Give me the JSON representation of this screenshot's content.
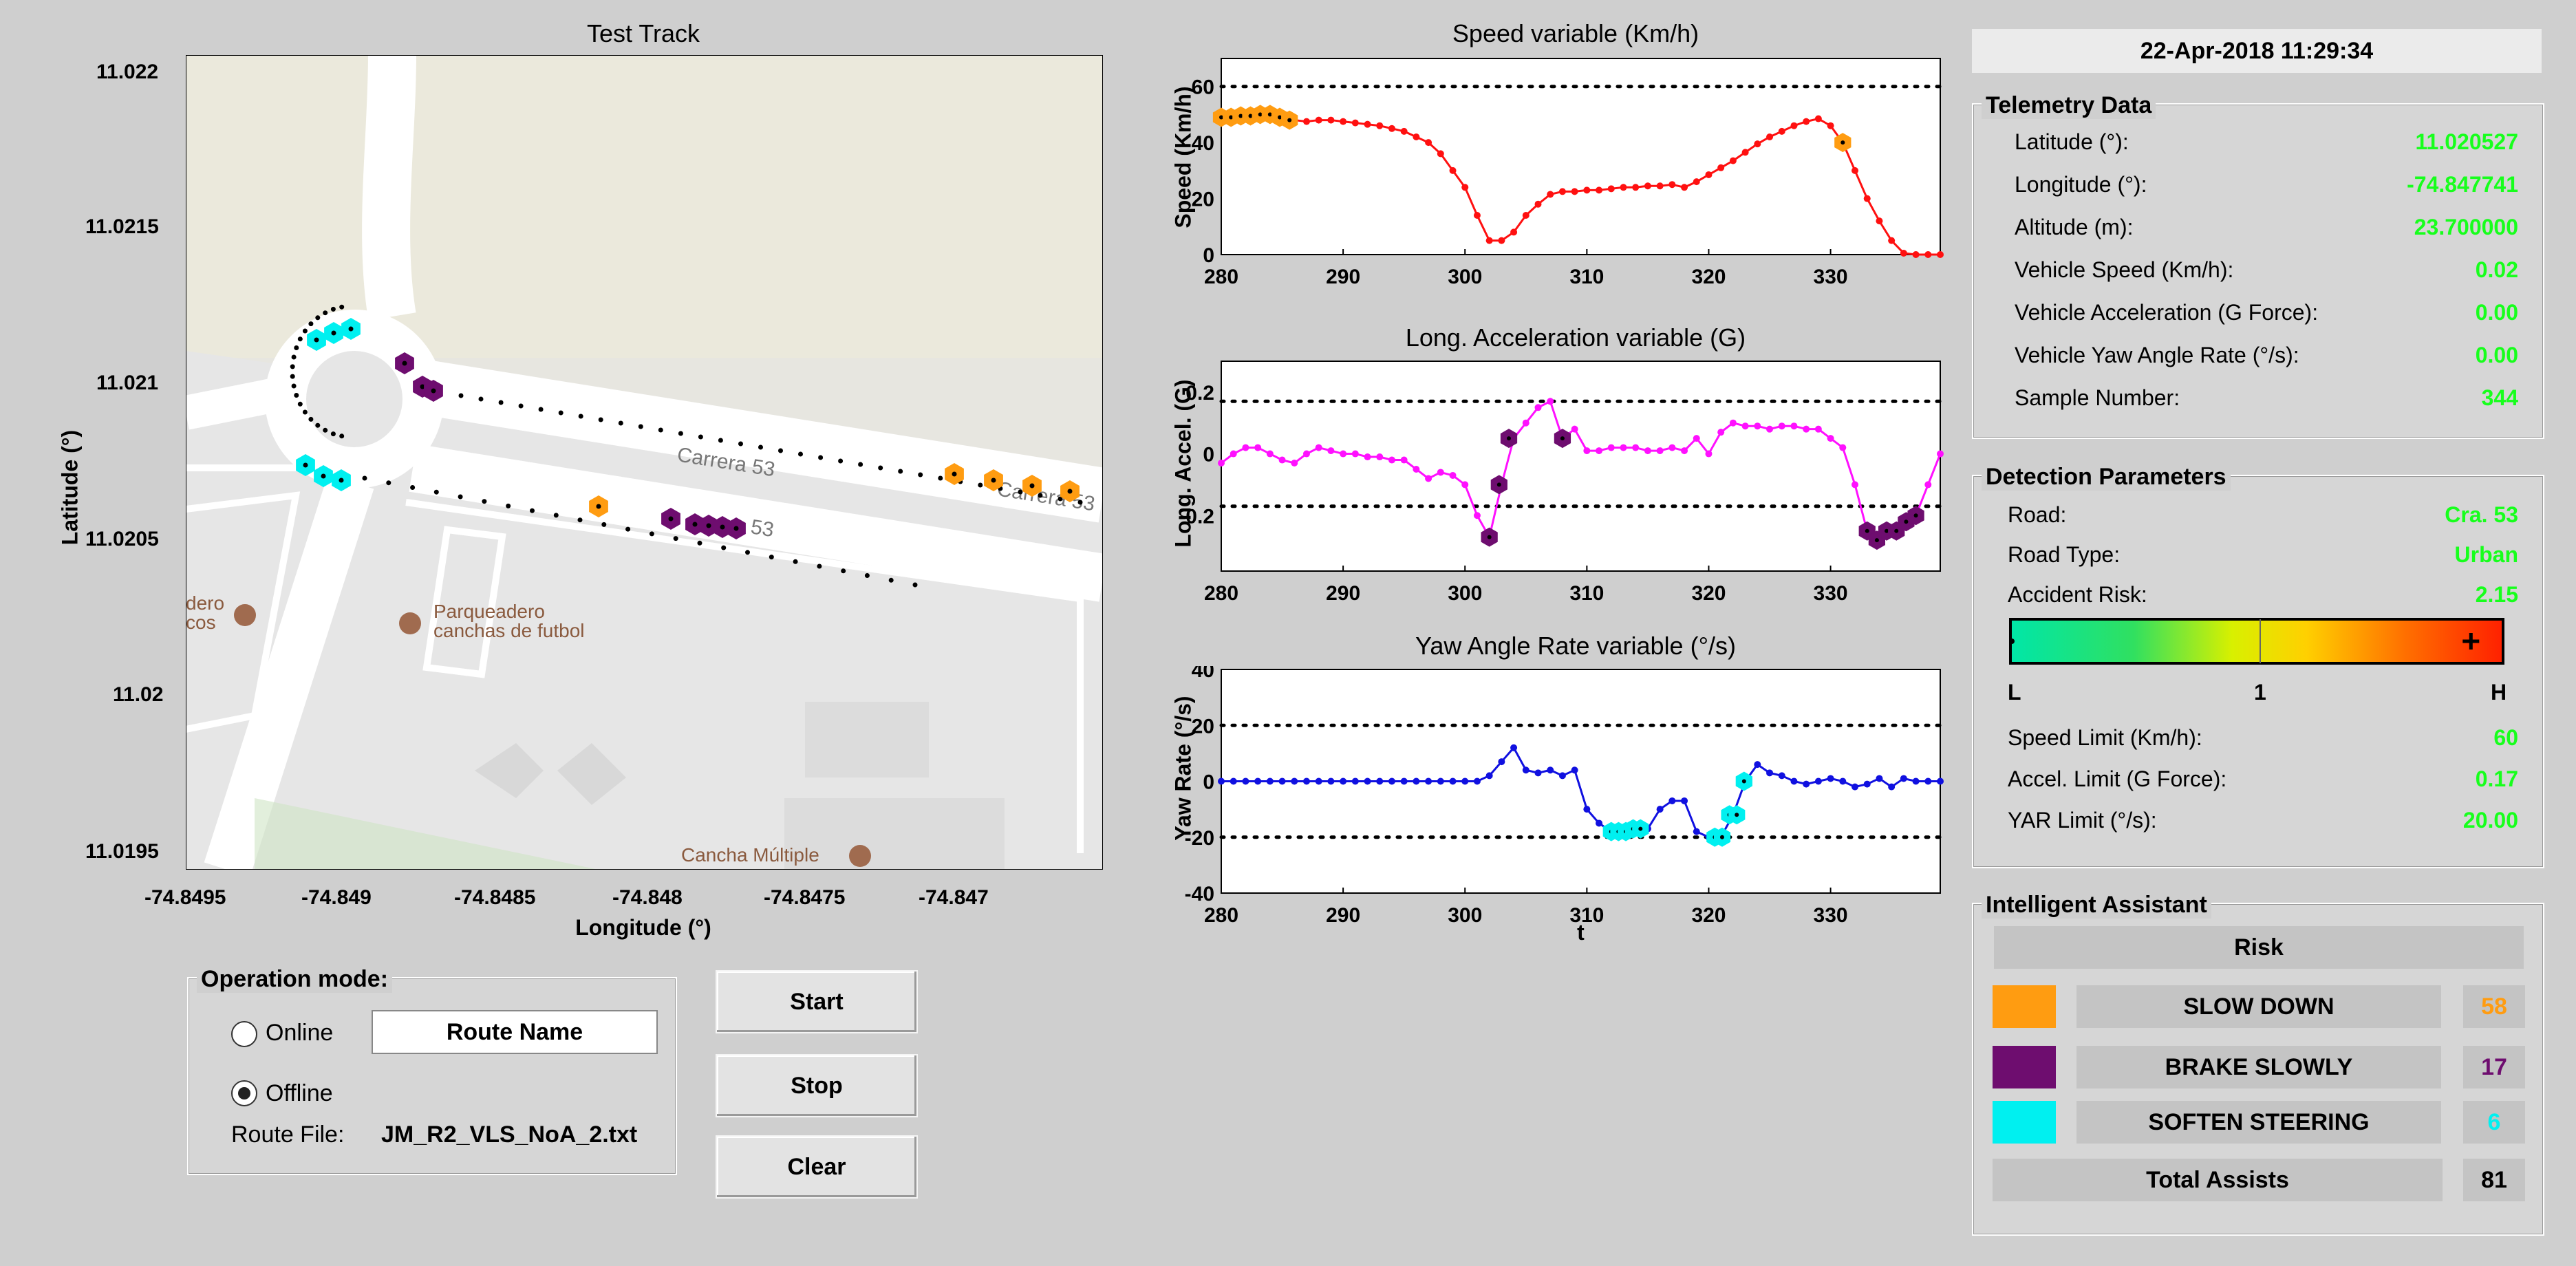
{
  "map": {
    "title": "Test Track",
    "xlabel": "Longitude (°)",
    "ylabel": "Latitude (°)",
    "y_ticks": [
      "11.022",
      "11.0215",
      "11.021",
      "11.0205",
      "11.02",
      "11.0195"
    ],
    "x_ticks": [
      "-74.8495",
      "-74.849",
      "-74.8485",
      "-74.848",
      "-74.8475",
      "-74.847"
    ],
    "street_labels": [
      "Carrera 53",
      "Carrera 53",
      "53"
    ],
    "place_labels": [
      "Parqueadero",
      "canchas de futbol",
      "dero",
      "cos",
      "Cancha Múltiple"
    ]
  },
  "colors": {
    "slow_down": "#ff9c11",
    "brake": "#6e0d6f",
    "steer": "#00f0f0",
    "speed": "#ff1010",
    "accel": "#ff10ff",
    "yaw": "#1010e0",
    "green": "#17ff1c"
  },
  "speed_chart": {
    "type": "line",
    "title": "Speed variable (Km/h)",
    "ylabel": "Speed (Km/h)",
    "xlabel": "",
    "xlim": [
      280,
      339
    ],
    "ylim": [
      0,
      70
    ],
    "x_ticks": [
      "280",
      "290",
      "300",
      "310",
      "320",
      "330"
    ],
    "y_ticks": [
      "60",
      "40",
      "20",
      "0"
    ],
    "limit_lines": [
      60
    ],
    "x": [
      280,
      281,
      282,
      283,
      284,
      285,
      286,
      287,
      288,
      289,
      290,
      291,
      292,
      293,
      294,
      295,
      296,
      297,
      298,
      299,
      300,
      301,
      302,
      303,
      304,
      305,
      306,
      307,
      308,
      309,
      310,
      311,
      312,
      313,
      314,
      315,
      316,
      317,
      318,
      319,
      320,
      321,
      322,
      323,
      324,
      325,
      326,
      327,
      328,
      329,
      330,
      331,
      332,
      333,
      334,
      335,
      336,
      337,
      338,
      339
    ],
    "values": [
      49,
      49,
      49.5,
      50,
      50,
      49,
      48,
      47.5,
      48,
      48,
      47.5,
      47,
      46.5,
      46,
      45,
      44,
      42,
      40,
      36,
      30,
      24,
      14,
      5,
      5,
      8,
      14,
      18,
      21.5,
      22.5,
      22.5,
      23,
      23,
      23.5,
      24,
      24,
      24.5,
      24.5,
      25,
      24,
      26,
      28.5,
      31,
      33.5,
      36.5,
      39.5,
      42,
      44,
      46,
      47.5,
      48.5,
      46,
      40,
      30,
      20,
      12,
      5,
      0.5,
      0,
      0,
      0
    ],
    "markers": [
      {
        "series": "slow_down",
        "x": [
          280,
          280.8,
          281.6,
          282.4,
          283.2,
          284,
          284.8,
          285.6,
          331
        ]
      }
    ]
  },
  "accel_chart": {
    "type": "line",
    "title": "Long. Acceleration variable (G)",
    "ylabel": "Long. Accel. (G)",
    "xlabel": "",
    "xlim": [
      280,
      339
    ],
    "ylim": [
      -0.38,
      0.3
    ],
    "x_ticks": [
      "280",
      "290",
      "300",
      "310",
      "320",
      "330"
    ],
    "y_ticks": [
      "0.2",
      "0",
      "-0.2"
    ],
    "limit_lines": [
      0.17,
      -0.17
    ],
    "x": [
      280,
      281,
      282,
      283,
      284,
      285,
      286,
      287,
      288,
      289,
      290,
      291,
      292,
      293,
      294,
      295,
      296,
      297,
      298,
      299,
      300,
      301,
      302,
      303,
      304,
      305,
      306,
      307,
      308,
      309,
      310,
      311,
      312,
      313,
      314,
      315,
      316,
      317,
      318,
      319,
      320,
      321,
      322,
      323,
      324,
      325,
      326,
      327,
      328,
      329,
      330,
      331,
      332,
      333,
      334,
      335,
      336,
      337,
      338,
      339
    ],
    "values": [
      -0.03,
      0,
      0.02,
      0.02,
      0,
      -0.02,
      -0.03,
      0,
      0.02,
      0.01,
      0,
      0,
      -0.01,
      -0.01,
      -0.02,
      -0.02,
      -0.05,
      -0.08,
      -0.06,
      -0.07,
      -0.1,
      -0.2,
      -0.27,
      -0.1,
      0.05,
      0.1,
      0.15,
      0.17,
      0.05,
      0.08,
      0.01,
      0.01,
      0.02,
      0.02,
      0.02,
      0.01,
      0.01,
      0.02,
      0.01,
      0.05,
      0,
      0.07,
      0.1,
      0.09,
      0.09,
      0.08,
      0.09,
      0.09,
      0.08,
      0.08,
      0.05,
      0.02,
      -0.1,
      -0.25,
      -0.28,
      -0.25,
      -0.22,
      -0.2,
      -0.1,
      0
    ],
    "markers": [
      {
        "series": "brake",
        "x": [
          302,
          302.8,
          303.6,
          308,
          333,
          333.8,
          334.6,
          335.4,
          336.2,
          337
        ]
      }
    ]
  },
  "yaw_chart": {
    "type": "line",
    "title": "Yaw Angle Rate variable (°/s)",
    "ylabel": "Yaw Rate (°/s)",
    "xlabel": "t",
    "xlim": [
      280,
      339
    ],
    "ylim": [
      -40,
      40
    ],
    "x_ticks": [
      "280",
      "290",
      "300",
      "310",
      "320",
      "330"
    ],
    "y_ticks": [
      "40",
      "20",
      "0",
      "-20",
      "-40"
    ],
    "limit_lines": [
      20,
      -20
    ],
    "x": [
      280,
      281,
      282,
      283,
      284,
      285,
      286,
      287,
      288,
      289,
      290,
      291,
      292,
      293,
      294,
      295,
      296,
      297,
      298,
      299,
      300,
      301,
      302,
      303,
      304,
      305,
      306,
      307,
      308,
      309,
      310,
      311,
      312,
      313,
      314,
      315,
      316,
      317,
      318,
      319,
      320,
      321,
      322,
      323,
      324,
      325,
      326,
      327,
      328,
      329,
      330,
      331,
      332,
      333,
      334,
      335,
      336,
      337,
      338,
      339
    ],
    "values": [
      0,
      0,
      0,
      0,
      0,
      0,
      0,
      0,
      0,
      0,
      0,
      0,
      0,
      0,
      0,
      0,
      0,
      0,
      0,
      0,
      0,
      0,
      2,
      7,
      12,
      4,
      3,
      4,
      2,
      4,
      -10,
      -15,
      -18,
      -18,
      -17,
      -17,
      -10,
      -7,
      -7,
      -18,
      -20,
      -20,
      -12,
      0,
      6,
      3,
      2,
      0,
      -1,
      0,
      1,
      0,
      -2,
      -1,
      1,
      -2,
      1,
      0,
      0,
      0
    ],
    "markers": [
      {
        "series": "steer",
        "x": [
          312,
          312.6,
          313.2,
          313.8,
          314.4,
          320.5,
          321.1,
          321.7,
          322.3,
          322.9
        ]
      }
    ]
  },
  "datetime": "22-Apr-2018 11:29:34",
  "telemetry": {
    "title": "Telemetry Data",
    "rows": [
      {
        "label": "Latitude (°):",
        "value": "11.020527"
      },
      {
        "label": "Longitude (°):",
        "value": "-74.847741"
      },
      {
        "label": "Altitude (m):",
        "value": "23.700000"
      },
      {
        "label": "Vehicle Speed (Km/h):",
        "value": "0.02"
      },
      {
        "label": "Vehicle Acceleration (G Force):",
        "value": "0.00"
      },
      {
        "label": "Vehicle Yaw Angle Rate (°/s):",
        "value": "0.00"
      },
      {
        "label": "Sample Number:",
        "value": "344"
      }
    ]
  },
  "detection": {
    "title": "Detection Parameters",
    "rows": [
      {
        "label": "Road:",
        "value": "Cra. 53"
      },
      {
        "label": "Road Type:",
        "value": "Urban"
      },
      {
        "label": "Accident Risk:",
        "value": "2.15"
      }
    ],
    "risk_scale": {
      "low": "L",
      "mid": "1",
      "high": "H",
      "value": 2.15,
      "max": 2.3
    },
    "limits": [
      {
        "label": "Speed Limit (Km/h):",
        "value": "60"
      },
      {
        "label": "Accel. Limit (G Force):",
        "value": "0.17"
      },
      {
        "label": "YAR Limit (°/s):",
        "value": "20.00"
      }
    ]
  },
  "assistant": {
    "title": "Intelligent Assistant",
    "header": "Risk",
    "items": [
      {
        "label": "SLOW DOWN",
        "count": "58",
        "color": "#ff9c11"
      },
      {
        "label": "BRAKE SLOWLY",
        "count": "17",
        "color": "#6e0d6f"
      },
      {
        "label": "SOFTEN STEERING",
        "count": "6",
        "color": "#00f0f0"
      }
    ],
    "total_label": "Total Assists",
    "total": "81"
  },
  "operation": {
    "title": "Operation mode:",
    "online": "Online",
    "offline": "Offline",
    "route_name": "Route Name",
    "route_file_label": "Route File:",
    "route_file": "JM_R2_VLS_NoA_2.txt"
  },
  "buttons": {
    "start": "Start",
    "stop": "Stop",
    "clear": "Clear"
  }
}
